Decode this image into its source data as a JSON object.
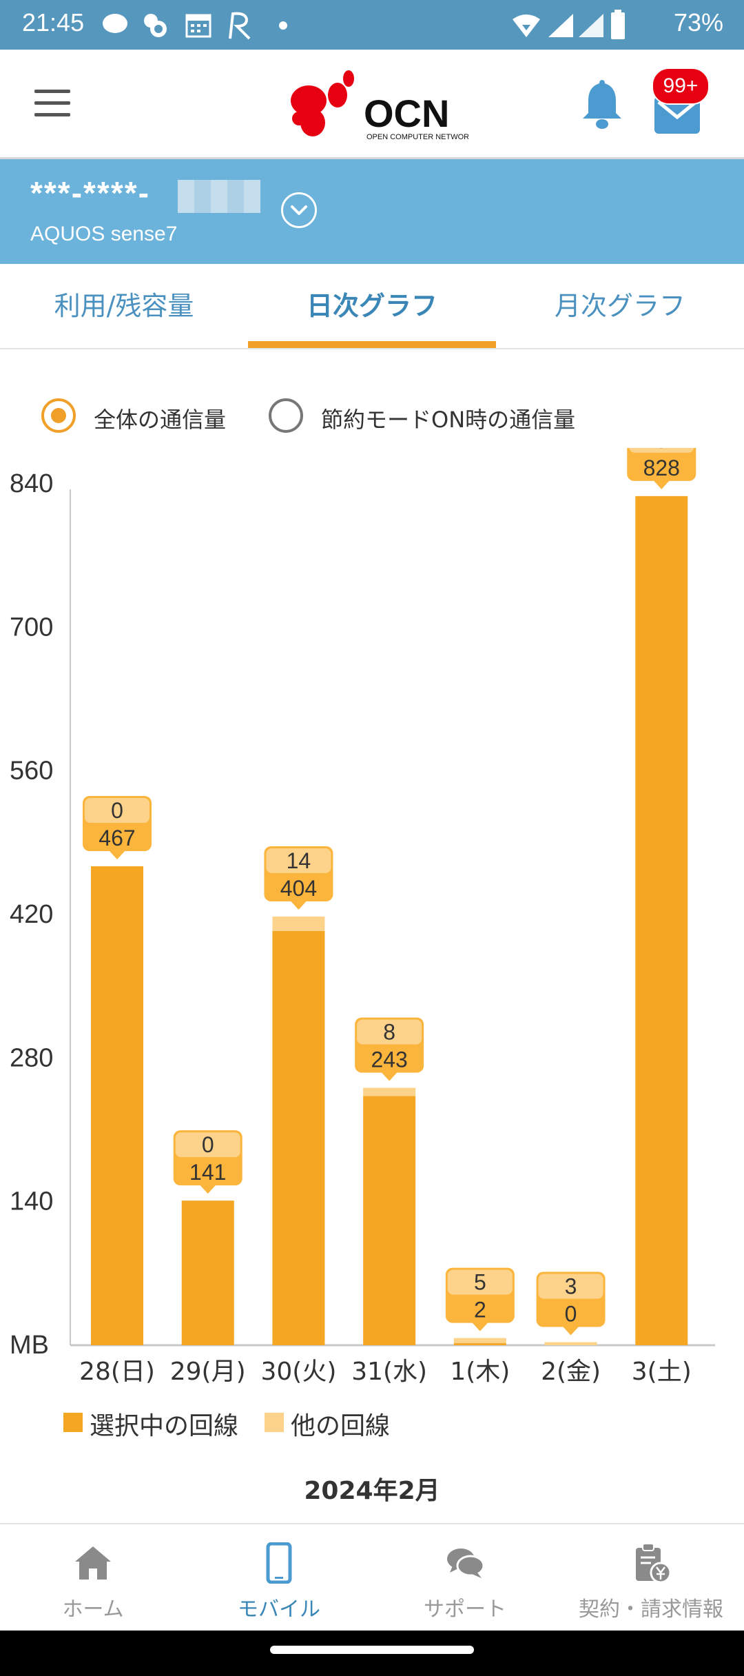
{
  "status_bar": {
    "time": "21:45",
    "battery": "73%"
  },
  "header": {
    "logo_text": "OCN",
    "logo_sub": "OPEN COMPUTER NETWORK",
    "mail_badge": "99+"
  },
  "line": {
    "number": "***-****-",
    "device": "AQUOS sense7"
  },
  "tabs": [
    {
      "label": "利用/残容量"
    },
    {
      "label": "日次グラフ"
    },
    {
      "label": "月次グラフ"
    }
  ],
  "radios": [
    {
      "label": "全体の通信量",
      "checked": true
    },
    {
      "label": "節約モードON時の通信量",
      "checked": false
    }
  ],
  "chart_data": {
    "type": "bar",
    "stacked": true,
    "categories": [
      "28(日)",
      "29(月)",
      "30(火)",
      "31(水)",
      "1(木)",
      "2(金)",
      "3(土)"
    ],
    "series": [
      {
        "name": "選択中の回線",
        "values": [
          467,
          141,
          404,
          243,
          2,
          0,
          828
        ],
        "color": "#f5a623"
      },
      {
        "name": "他の回線",
        "values": [
          0,
          0,
          14,
          8,
          5,
          3,
          0
        ],
        "color": "#fdd28a"
      }
    ],
    "yticks": [
      "840",
      "700",
      "560",
      "420",
      "280",
      "140",
      "MB"
    ],
    "ylim": [
      0,
      840
    ],
    "grid": false,
    "legend": "bottom-left"
  },
  "month_label": "2024年2月",
  "bottom_nav": [
    {
      "label": "ホーム"
    },
    {
      "label": "モバイル"
    },
    {
      "label": "サポート"
    },
    {
      "label": "契約・請求情報"
    }
  ],
  "colors": {
    "accent": "#f0a028",
    "tab_text": "#3a86b7",
    "band": "#6bb3db"
  }
}
